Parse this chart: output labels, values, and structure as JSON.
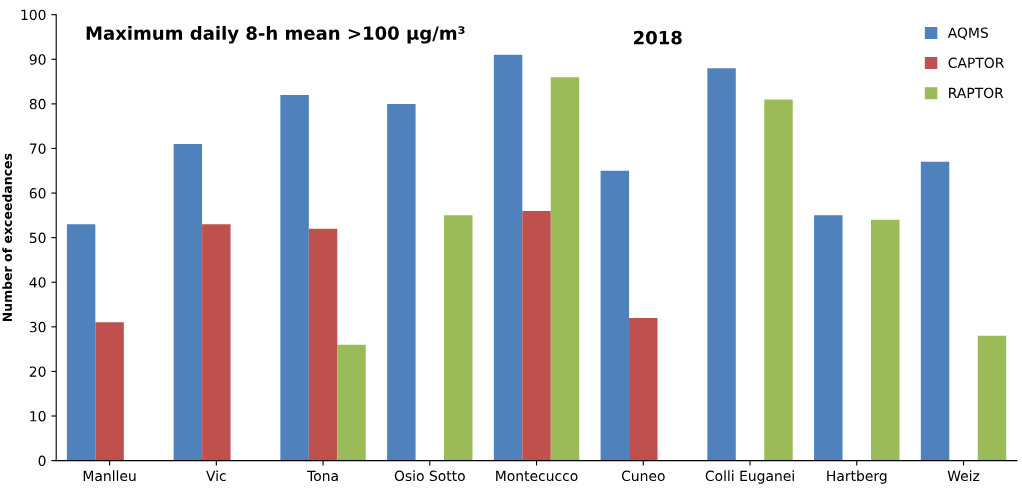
{
  "chart_data": {
    "type": "bar",
    "title": "Maximum daily 8-h mean >100 µg/m³",
    "annotations": [
      "2018"
    ],
    "ylabel": "Number of exceedances",
    "categories": [
      "Manlleu",
      "Vic",
      "Tona",
      "Osio Sotto",
      "Montecucco",
      "Cuneo",
      "Colli Euganei",
      "Hartberg",
      "Weiz"
    ],
    "series": [
      {
        "name": "AQMS",
        "color": "#4f81bd",
        "values": [
          53,
          71,
          82,
          80,
          91,
          65,
          88,
          55,
          67
        ]
      },
      {
        "name": "CAPTOR",
        "color": "#c0504d",
        "values": [
          31,
          53,
          52,
          null,
          56,
          32,
          null,
          null,
          null
        ]
      },
      {
        "name": "RAPTOR",
        "color": "#9bbb59",
        "values": [
          null,
          null,
          26,
          55,
          86,
          null,
          81,
          54,
          28
        ]
      }
    ],
    "ylim": [
      0,
      100
    ],
    "yticks": [
      0,
      10,
      20,
      30,
      40,
      50,
      60,
      70,
      80,
      90,
      100
    ],
    "grid": false,
    "legend": "top right"
  }
}
